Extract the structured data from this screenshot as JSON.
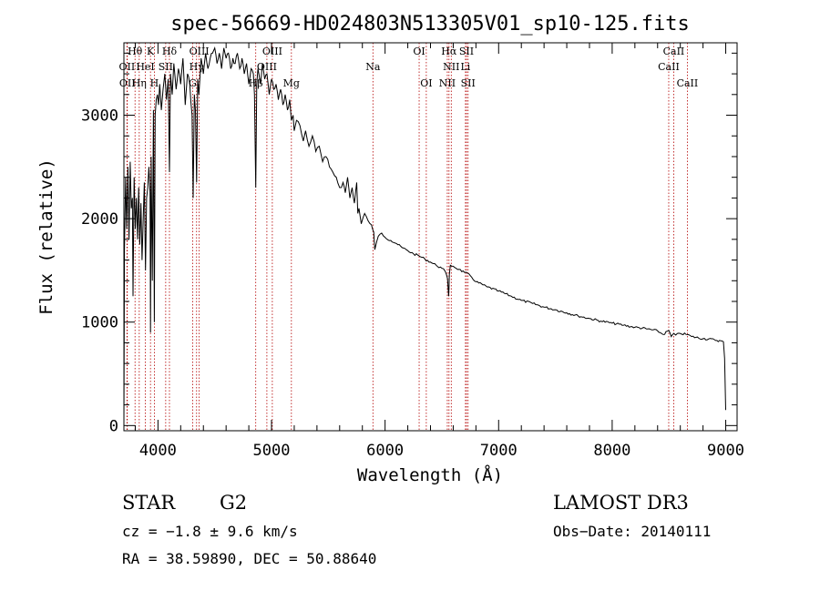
{
  "chart_data": {
    "type": "line",
    "title": "spec-56669-HD024803N513305V01_sp10-125.fits",
    "xlabel": "Wavelength (Å)",
    "ylabel": "Flux (relative)",
    "xlim": [
      3700,
      9100
    ],
    "ylim": [
      -50,
      3700
    ],
    "x_ticks": [
      4000,
      5000,
      6000,
      7000,
      8000,
      9000
    ],
    "x_tick_labels": [
      "4000",
      "5000",
      "6000",
      "7000",
      "8000",
      "9000"
    ],
    "y_ticks": [
      0,
      1000,
      2000,
      3000
    ],
    "y_tick_labels": [
      "0",
      "1000",
      "2000",
      "3000"
    ],
    "series": [
      {
        "name": "Flux",
        "x": [
          3700,
          3705,
          3715,
          3725,
          3735,
          3745,
          3755,
          3765,
          3775,
          3780,
          3790,
          3800,
          3810,
          3820,
          3830,
          3840,
          3850,
          3860,
          3870,
          3880,
          3890,
          3900,
          3910,
          3920,
          3930,
          3934,
          3940,
          3950,
          3960,
          3968,
          3975,
          3985,
          3995,
          4005,
          4015,
          4030,
          4045,
          4060,
          4075,
          4090,
          4101,
          4110,
          4125,
          4140,
          4160,
          4180,
          4200,
          4220,
          4240,
          4260,
          4280,
          4300,
          4310,
          4320,
          4330,
          4340,
          4350,
          4360,
          4380,
          4400,
          4420,
          4440,
          4460,
          4480,
          4500,
          4520,
          4540,
          4560,
          4580,
          4600,
          4620,
          4640,
          4660,
          4680,
          4700,
          4720,
          4740,
          4760,
          4780,
          4800,
          4820,
          4840,
          4850,
          4861,
          4870,
          4880,
          4900,
          4920,
          4940,
          4960,
          4980,
          5000,
          5020,
          5040,
          5060,
          5080,
          5100,
          5120,
          5140,
          5160,
          5175,
          5190,
          5200,
          5220,
          5250,
          5280,
          5300,
          5330,
          5360,
          5390,
          5420,
          5450,
          5480,
          5510,
          5540,
          5570,
          5600,
          5630,
          5650,
          5670,
          5690,
          5710,
          5730,
          5750,
          5760,
          5770,
          5790,
          5820,
          5850,
          5880,
          5890,
          5900,
          5910,
          5940,
          5970,
          6000,
          6050,
          6100,
          6150,
          6200,
          6250,
          6300,
          6350,
          6400,
          6450,
          6500,
          6530,
          6550,
          6560,
          6563,
          6566,
          6575,
          6600,
          6650,
          6700,
          6750,
          6800,
          6900,
          7000,
          7100,
          7200,
          7300,
          7400,
          7500,
          7600,
          7700,
          7800,
          7900,
          8000,
          8100,
          8200,
          8300,
          8400,
          8450,
          8498,
          8520,
          8542,
          8560,
          8600,
          8662,
          8700,
          8800,
          8900,
          8980,
          8990,
          9000
        ],
        "values": [
          0,
          1700,
          2400,
          1900,
          2500,
          1800,
          2550,
          2100,
          2200,
          1250,
          2400,
          1900,
          2200,
          1800,
          2300,
          1750,
          2150,
          1600,
          2000,
          2350,
          1500,
          2200,
          2300,
          2500,
          2250,
          900,
          2600,
          1400,
          3050,
          1000,
          3000,
          3150,
          3200,
          3100,
          3300,
          3050,
          3250,
          3400,
          3150,
          3350,
          2450,
          3400,
          3200,
          3500,
          3250,
          3450,
          3300,
          3550,
          3100,
          3400,
          3300,
          3000,
          2200,
          3200,
          3050,
          2350,
          3350,
          3200,
          3550,
          3400,
          3600,
          3450,
          3550,
          3600,
          3650,
          3500,
          3600,
          3450,
          3650,
          3550,
          3600,
          3450,
          3550,
          3500,
          3600,
          3450,
          3550,
          3400,
          3500,
          3300,
          3450,
          3400,
          3200,
          2300,
          3300,
          3450,
          3300,
          3500,
          3350,
          3400,
          3200,
          3350,
          3250,
          3300,
          3150,
          3250,
          3100,
          3200,
          3050,
          3150,
          2950,
          3000,
          2850,
          2950,
          2900,
          2750,
          2850,
          2700,
          2800,
          2650,
          2700,
          2550,
          2600,
          2500,
          2450,
          2400,
          2300,
          2350,
          2250,
          2400,
          2200,
          2300,
          2150,
          2350,
          2050,
          2100,
          1950,
          2050,
          1980,
          1940,
          1900,
          1870,
          1700,
          1830,
          1860,
          1820,
          1790,
          1760,
          1720,
          1690,
          1660,
          1640,
          1610,
          1580,
          1550,
          1520,
          1490,
          1420,
          1250,
          1330,
          1460,
          1550,
          1540,
          1510,
          1480,
          1450,
          1390,
          1340,
          1300,
          1255,
          1210,
          1180,
          1145,
          1120,
          1090,
          1060,
          1035,
          1010,
          990,
          970,
          950,
          935,
          915,
          880,
          920,
          860,
          890,
          875,
          890,
          880,
          860,
          840,
          830,
          810,
          650,
          150
        ]
      }
    ],
    "spectral_lines": [
      {
        "label": "Hθ",
        "x": 3798,
        "row": 0
      },
      {
        "label": "K",
        "x": 3934,
        "row": 0
      },
      {
        "label": "Hδ",
        "x": 4101,
        "row": 0
      },
      {
        "label": "OIII",
        "x": 4363,
        "row": 0
      },
      {
        "label": "OIII",
        "x": 5007,
        "row": 0
      },
      {
        "label": "OI",
        "x": 6300,
        "row": 0
      },
      {
        "label": "Hα",
        "x": 6563,
        "row": 0
      },
      {
        "label": "SII",
        "x": 6717,
        "row": 0
      },
      {
        "label": "CaII",
        "x": 8542,
        "row": 0
      },
      {
        "label": "OII",
        "x": 3727,
        "row": 1
      },
      {
        "label": "HeI",
        "x": 3889,
        "row": 1
      },
      {
        "label": "SII",
        "x": 4068,
        "row": 1
      },
      {
        "label": "Hγ",
        "x": 4340,
        "row": 1
      },
      {
        "label": "OIII",
        "x": 4959,
        "row": 1
      },
      {
        "label": "Na",
        "x": 5893,
        "row": 1
      },
      {
        "label": "NII",
        "x": 6583,
        "row": 1
      },
      {
        "label": "Li",
        "x": 6708,
        "row": 1
      },
      {
        "label": "CaII",
        "x": 8498,
        "row": 1
      },
      {
        "label": "OII",
        "x": 3730,
        "row": 2
      },
      {
        "label": "Hη",
        "x": 3835,
        "row": 2
      },
      {
        "label": "H",
        "x": 3968,
        "row": 2
      },
      {
        "label": "G",
        "x": 4305,
        "row": 2
      },
      {
        "label": "Hβ",
        "x": 4861,
        "row": 2
      },
      {
        "label": "Mg",
        "x": 5175,
        "row": 2
      },
      {
        "label": "OI",
        "x": 6363,
        "row": 2
      },
      {
        "label": "NII",
        "x": 6548,
        "row": 2
      },
      {
        "label": "SII",
        "x": 6731,
        "row": 2
      },
      {
        "label": "CaII",
        "x": 8662,
        "row": 2
      }
    ],
    "line_color": "#000000",
    "marker_color": "#b30000"
  },
  "info": {
    "object_type": "STAR",
    "subclass": "G2",
    "survey": "LAMOST DR3",
    "cz": "cz = −1.8 ± 9.6 km/s",
    "obs_date": "Obs−Date: 20140111",
    "coords": "RA =  38.59890, DEC =  50.88640"
  }
}
